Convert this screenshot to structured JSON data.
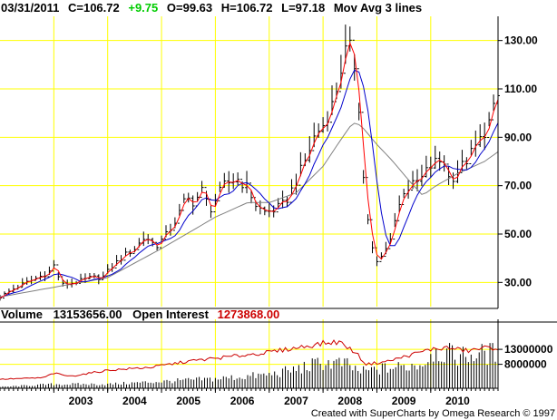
{
  "header": {
    "date": "03/31/2011",
    "close_label": "C=106.72",
    "change": "+9.75",
    "open_label": "O=99.63",
    "high_label": "H=106.72",
    "low_label": "L=97.18",
    "indicator": "Mov Avg 3 lines"
  },
  "volume_header": {
    "volume_label": "Volume",
    "volume_value": "13153656.00",
    "oi_label": "Open Interest",
    "oi_value": "1273868.00"
  },
  "credit": "Created with SuperCharts by Omega Research © 1997",
  "colors": {
    "grid": "#ffff00",
    "price": "#000000",
    "ma_fast": "#ff0000",
    "ma_mid": "#0000cc",
    "ma_slow": "#808080",
    "change": "#00cc00",
    "open_interest": "#cc0000",
    "volume": "#000000"
  },
  "chart_data": {
    "type": "line",
    "subtype": "ohlc-bars-with-moving-averages-and-volume",
    "x_ticks": [
      "2003",
      "2004",
      "2005",
      "2006",
      "2007",
      "2008",
      "2009",
      "2010"
    ],
    "price_axis": {
      "ticks": [
        "30.00",
        "50.00",
        "70.00",
        "90.00",
        "110.00",
        "130.00"
      ],
      "ylim": [
        20,
        140
      ]
    },
    "volume_axis": {
      "ticks": [
        "13000000",
        "8000000"
      ],
      "ylim": [
        0,
        20000000
      ]
    },
    "grid": true,
    "start_year": 2002.0,
    "end_year": 2011.25,
    "price_keypoints": [
      [
        2002.0,
        24
      ],
      [
        2002.3,
        28
      ],
      [
        2002.6,
        31
      ],
      [
        2002.9,
        34
      ],
      [
        2003.0,
        37
      ],
      [
        2003.15,
        29
      ],
      [
        2003.4,
        30
      ],
      [
        2003.7,
        32
      ],
      [
        2003.9,
        32
      ],
      [
        2004.1,
        37
      ],
      [
        2004.3,
        41
      ],
      [
        2004.5,
        44
      ],
      [
        2004.7,
        49
      ],
      [
        2004.9,
        45
      ],
      [
        2005.1,
        50
      ],
      [
        2005.3,
        57
      ],
      [
        2005.45,
        65
      ],
      [
        2005.6,
        63
      ],
      [
        2005.75,
        68
      ],
      [
        2005.9,
        60
      ],
      [
        2006.15,
        70
      ],
      [
        2006.4,
        73
      ],
      [
        2006.6,
        69
      ],
      [
        2006.75,
        62
      ],
      [
        2006.9,
        59
      ],
      [
        2007.1,
        60
      ],
      [
        2007.3,
        63
      ],
      [
        2007.5,
        72
      ],
      [
        2007.7,
        82
      ],
      [
        2007.85,
        91
      ],
      [
        2008.0,
        95
      ],
      [
        2008.2,
        105
      ],
      [
        2008.35,
        120
      ],
      [
        2008.45,
        128
      ],
      [
        2008.55,
        125
      ],
      [
        2008.65,
        110
      ],
      [
        2008.72,
        80
      ],
      [
        2008.8,
        62
      ],
      [
        2008.9,
        45
      ],
      [
        2009.0,
        38
      ],
      [
        2009.1,
        41
      ],
      [
        2009.2,
        45
      ],
      [
        2009.35,
        57
      ],
      [
        2009.5,
        68
      ],
      [
        2009.65,
        70
      ],
      [
        2009.8,
        72
      ],
      [
        2009.95,
        77
      ],
      [
        2010.1,
        80
      ],
      [
        2010.25,
        80
      ],
      [
        2010.35,
        72
      ],
      [
        2010.5,
        76
      ],
      [
        2010.65,
        80
      ],
      [
        2010.8,
        85
      ],
      [
        2010.95,
        90
      ],
      [
        2011.1,
        97
      ],
      [
        2011.25,
        106.72
      ]
    ],
    "ma_slow_keypoints": [
      [
        2002.0,
        24
      ],
      [
        2003.0,
        28
      ],
      [
        2004.0,
        32
      ],
      [
        2005.0,
        44
      ],
      [
        2006.0,
        57
      ],
      [
        2006.6,
        63
      ],
      [
        2007.0,
        63
      ],
      [
        2007.5,
        67
      ],
      [
        2008.0,
        78
      ],
      [
        2008.3,
        88
      ],
      [
        2008.55,
        96
      ],
      [
        2008.7,
        95
      ],
      [
        2009.0,
        87
      ],
      [
        2009.3,
        80
      ],
      [
        2009.6,
        72
      ],
      [
        2009.85,
        66
      ],
      [
        2010.1,
        70
      ],
      [
        2010.5,
        75
      ],
      [
        2011.0,
        80
      ],
      [
        2011.25,
        84
      ]
    ],
    "volume_keypoints": [
      [
        2002.0,
        0.5
      ],
      [
        2003.0,
        1.5
      ],
      [
        2004.0,
        1.5
      ],
      [
        2005.0,
        2.5
      ],
      [
        2006.0,
        3.5
      ],
      [
        2007.0,
        5
      ],
      [
        2007.5,
        7
      ],
      [
        2008.0,
        9.5
      ],
      [
        2008.4,
        9
      ],
      [
        2008.7,
        6
      ],
      [
        2009.0,
        7
      ],
      [
        2009.5,
        8
      ],
      [
        2009.9,
        9.5
      ],
      [
        2010.0,
        14
      ],
      [
        2010.5,
        12
      ],
      [
        2011.25,
        13.2
      ]
    ],
    "open_interest_keypoints": [
      [
        2002.0,
        3
      ],
      [
        2002.8,
        3.5
      ],
      [
        2003.0,
        5
      ],
      [
        2003.3,
        4
      ],
      [
        2004.0,
        6
      ],
      [
        2004.8,
        7
      ],
      [
        2005.5,
        9
      ],
      [
        2006.0,
        10
      ],
      [
        2006.5,
        11
      ],
      [
        2007.0,
        12
      ],
      [
        2007.5,
        13.5
      ],
      [
        2008.0,
        15
      ],
      [
        2008.3,
        15.5
      ],
      [
        2008.6,
        12
      ],
      [
        2008.8,
        8
      ],
      [
        2009.2,
        9
      ],
      [
        2009.6,
        11
      ],
      [
        2010.0,
        13
      ],
      [
        2010.3,
        13.5
      ],
      [
        2010.7,
        12.5
      ],
      [
        2011.0,
        13.5
      ],
      [
        2011.25,
        13.5
      ]
    ]
  }
}
